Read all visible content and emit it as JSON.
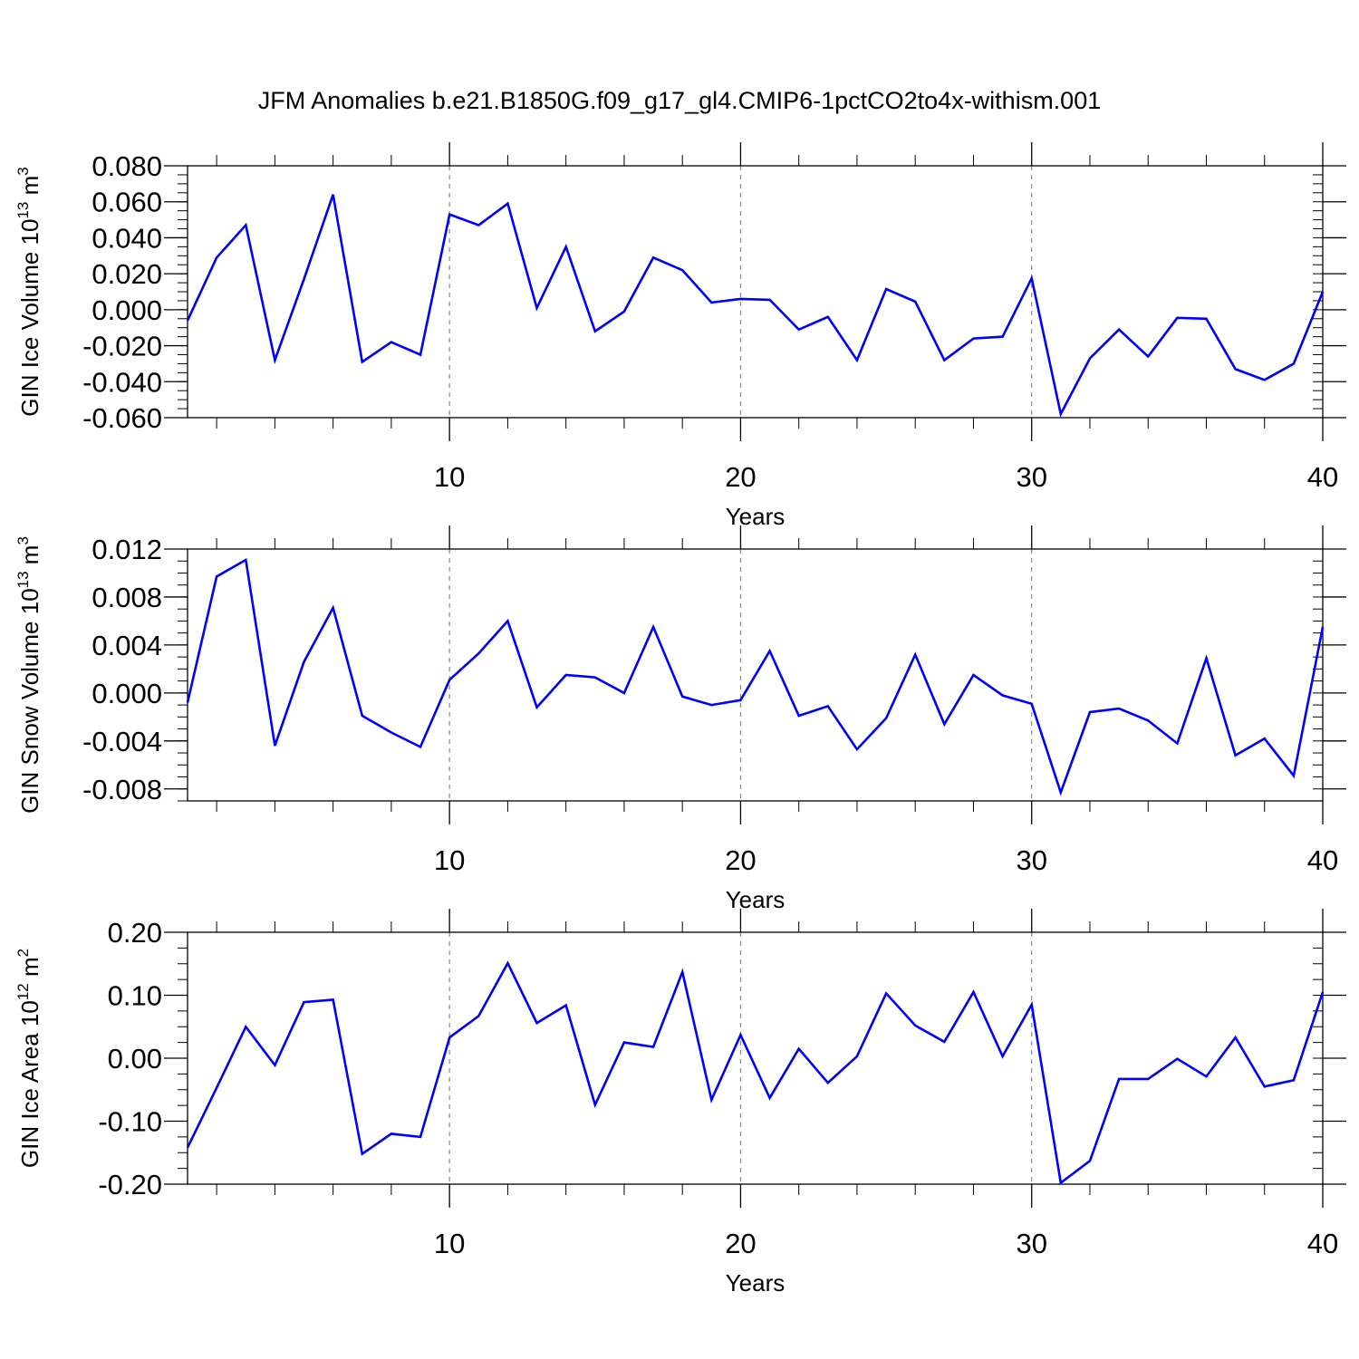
{
  "title": "JFM Anomalies b.e21.B1850G.f09_g17_gl4.CMIP6-1pctCO2to4x-withism.001",
  "colors": {
    "series": "#0000ff",
    "grid": "#888888",
    "axis": "#000000"
  },
  "chart_data": [
    {
      "type": "line",
      "xlabel": "Years",
      "ylabel": {
        "text": "GIN Ice Volume 10",
        "exp": "13",
        "unit": " m",
        "unit_exp": "3"
      },
      "xlim": [
        1,
        40
      ],
      "ylim": [
        -0.06,
        0.08
      ],
      "x_ticks": [
        10,
        20,
        30,
        40
      ],
      "x_tick_labels": [
        "10",
        "20",
        "30",
        "40"
      ],
      "y_ticks": [
        0.08,
        0.06,
        0.04,
        0.02,
        0.0,
        -0.02,
        -0.04,
        -0.06
      ],
      "y_tick_labels": [
        "0.080",
        "0.060",
        "0.040",
        "0.020",
        "0.000",
        "-0.020",
        "-0.040",
        "-0.060"
      ],
      "y_minor_step": 0.005,
      "x_minor_step": 2,
      "grid": "x-major-dashed",
      "x": [
        1,
        2,
        3,
        4,
        5,
        6,
        7,
        8,
        9,
        10,
        11,
        12,
        13,
        14,
        15,
        16,
        17,
        18,
        19,
        20,
        21,
        22,
        23,
        24,
        25,
        26,
        27,
        28,
        29,
        30,
        31,
        32,
        33,
        34,
        35,
        36,
        37,
        38,
        39,
        40
      ],
      "values": [
        -0.006,
        0.029,
        0.047,
        -0.028,
        0.017,
        0.064,
        -0.029,
        -0.018,
        -0.025,
        0.053,
        0.047,
        0.059,
        0.001,
        0.035,
        -0.012,
        -0.001,
        0.029,
        0.022,
        0.004,
        0.006,
        0.0055,
        -0.011,
        -0.004,
        -0.028,
        0.0115,
        0.0045,
        -0.028,
        -0.016,
        -0.015,
        0.0175,
        -0.058,
        -0.027,
        -0.011,
        -0.026,
        -0.0045,
        -0.005,
        -0.033,
        -0.039,
        -0.03,
        0.01
      ]
    },
    {
      "type": "line",
      "xlabel": "Years",
      "ylabel": {
        "text": "GIN Snow Volume 10",
        "exp": "13",
        "unit": " m",
        "unit_exp": "3"
      },
      "xlim": [
        1,
        40
      ],
      "ylim": [
        -0.009,
        0.012
      ],
      "x_ticks": [
        10,
        20,
        30,
        40
      ],
      "x_tick_labels": [
        "10",
        "20",
        "30",
        "40"
      ],
      "y_ticks": [
        0.012,
        0.008,
        0.004,
        0.0,
        -0.004,
        -0.008
      ],
      "y_tick_labels": [
        "0.012",
        "0.008",
        "0.004",
        "0.000",
        "-0.004",
        "-0.008"
      ],
      "y_minor_step": 0.001,
      "x_minor_step": 2,
      "grid": "x-major-dashed",
      "x": [
        1,
        2,
        3,
        4,
        5,
        6,
        7,
        8,
        9,
        10,
        11,
        12,
        13,
        14,
        15,
        16,
        17,
        18,
        19,
        20,
        21,
        22,
        23,
        24,
        25,
        26,
        27,
        28,
        29,
        30,
        31,
        32,
        33,
        34,
        35,
        36,
        37,
        38,
        39,
        40
      ],
      "values": [
        -0.0008,
        0.0097,
        0.0111,
        -0.0044,
        0.0026,
        0.0071,
        -0.0019,
        -0.0033,
        -0.0045,
        0.0011,
        0.0033,
        0.006,
        -0.0012,
        0.0015,
        0.0013,
        -0.0,
        0.0055,
        -0.0003,
        -0.001,
        -0.0006,
        0.0035,
        -0.0019,
        -0.0011,
        -0.0047,
        -0.0021,
        0.0032,
        -0.0026,
        0.0015,
        -0.0002,
        -0.0009,
        -0.0083,
        -0.0016,
        -0.0013,
        -0.0023,
        -0.0042,
        0.0029,
        -0.0052,
        -0.0038,
        -0.0069,
        0.0055
      ]
    },
    {
      "type": "line",
      "xlabel": "Years",
      "ylabel": {
        "text": "GIN Ice Area 10",
        "exp": "12",
        "unit": " m",
        "unit_exp": "2"
      },
      "xlim": [
        1,
        40
      ],
      "ylim": [
        -0.2,
        0.2
      ],
      "x_ticks": [
        10,
        20,
        30,
        40
      ],
      "x_tick_labels": [
        "10",
        "20",
        "30",
        "40"
      ],
      "y_ticks": [
        0.2,
        0.1,
        0.0,
        -0.1,
        -0.2
      ],
      "y_tick_labels": [
        "0.20",
        "0.10",
        "0.00",
        "-0.10",
        "-0.20"
      ],
      "y_minor_step": 0.025,
      "x_minor_step": 2,
      "grid": "x-major-dashed",
      "x": [
        1,
        2,
        3,
        4,
        5,
        6,
        7,
        8,
        9,
        10,
        11,
        12,
        13,
        14,
        15,
        16,
        17,
        18,
        19,
        20,
        21,
        22,
        23,
        24,
        25,
        26,
        27,
        28,
        29,
        30,
        31,
        32,
        33,
        34,
        35,
        36,
        37,
        38,
        39,
        40
      ],
      "values": [
        -0.142,
        -0.047,
        0.05,
        -0.011,
        0.089,
        0.093,
        -0.152,
        -0.12,
        -0.125,
        0.033,
        0.067,
        0.151,
        0.056,
        0.084,
        -0.074,
        0.025,
        0.018,
        0.137,
        -0.066,
        0.037,
        -0.063,
        0.015,
        -0.039,
        0.003,
        0.103,
        0.052,
        0.026,
        0.105,
        0.003,
        0.085,
        -0.198,
        -0.163,
        -0.033,
        -0.033,
        -0.001,
        -0.029,
        0.033,
        -0.045,
        -0.035,
        0.105
      ]
    }
  ]
}
